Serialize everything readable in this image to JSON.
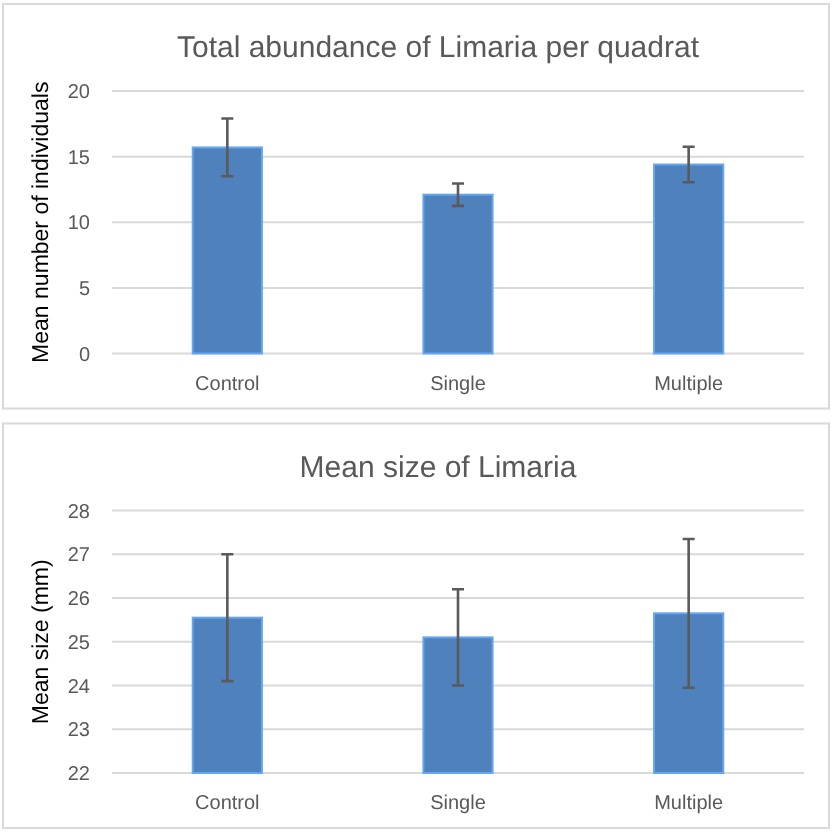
{
  "chart_data": [
    {
      "type": "bar",
      "title": "Total abundance of Limaria per quadrat",
      "ylabel": "Mean number of individuals",
      "categories": [
        "Control",
        "Single",
        "Multiple"
      ],
      "values": [
        15.7,
        12.1,
        14.4
      ],
      "errors": [
        2.2,
        0.85,
        1.35
      ],
      "color": "#4f81bd",
      "ylim": [
        0,
        20
      ],
      "yticks": [
        0,
        5,
        10,
        15,
        20
      ],
      "grid": "y"
    },
    {
      "type": "bar",
      "title": "Mean size of Limaria",
      "ylabel": "Mean size (mm)",
      "categories": [
        "Control",
        "Single",
        "Multiple"
      ],
      "values": [
        25.55,
        25.1,
        25.65
      ],
      "errors": [
        1.45,
        1.1,
        1.7
      ],
      "color": "#4f81bd",
      "ylim": [
        22,
        28
      ],
      "yticks": [
        22,
        23,
        24,
        25,
        26,
        27,
        28
      ],
      "grid": "y"
    }
  ]
}
